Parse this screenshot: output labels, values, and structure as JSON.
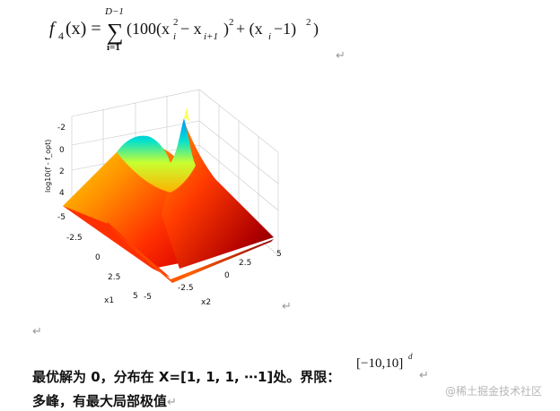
{
  "formula": {
    "lhs": "f",
    "lhs_sub": "4",
    "lhs_arg": "(x) =",
    "sum_upper": "D−1",
    "sum_lower": "i=1",
    "body_1": "(100(x",
    "sq1": "2",
    "sub_i1": "i",
    "minus": " − x",
    "sub_i1b": "i+1",
    "close1": ")",
    "sq2": "2",
    "plus": " + (x",
    "sub_i2": "i",
    "tail": " −1)",
    "sq3": "2",
    "end": ")"
  },
  "para_mark": "↵",
  "plot": {
    "z_ticks": [
      "-2",
      "0",
      "2",
      "4"
    ],
    "z_label": "log10(f - f_opt)",
    "x1_ticks": [
      "-5",
      "-2.5",
      "0",
      "2.5",
      "5"
    ],
    "x1_label": "x1",
    "x2_ticks": [
      "-5",
      "-2.5",
      "0",
      "2.5",
      "5"
    ],
    "x2_label": "x2"
  },
  "text": {
    "line1": "最优解为 0，分布在 X=[1, 1, 1, ⋯1]处。界限：",
    "line2": "多峰，有最大局部极值",
    "bounds": "[−10,10]",
    "bounds_sup": "d"
  },
  "watermark": "@稀土掘金技术社区",
  "colors": {
    "surface_low": "#8b0000",
    "surface_mid": "#ff8c00",
    "surface_high": "#00c0ff",
    "axes": "#888888"
  }
}
